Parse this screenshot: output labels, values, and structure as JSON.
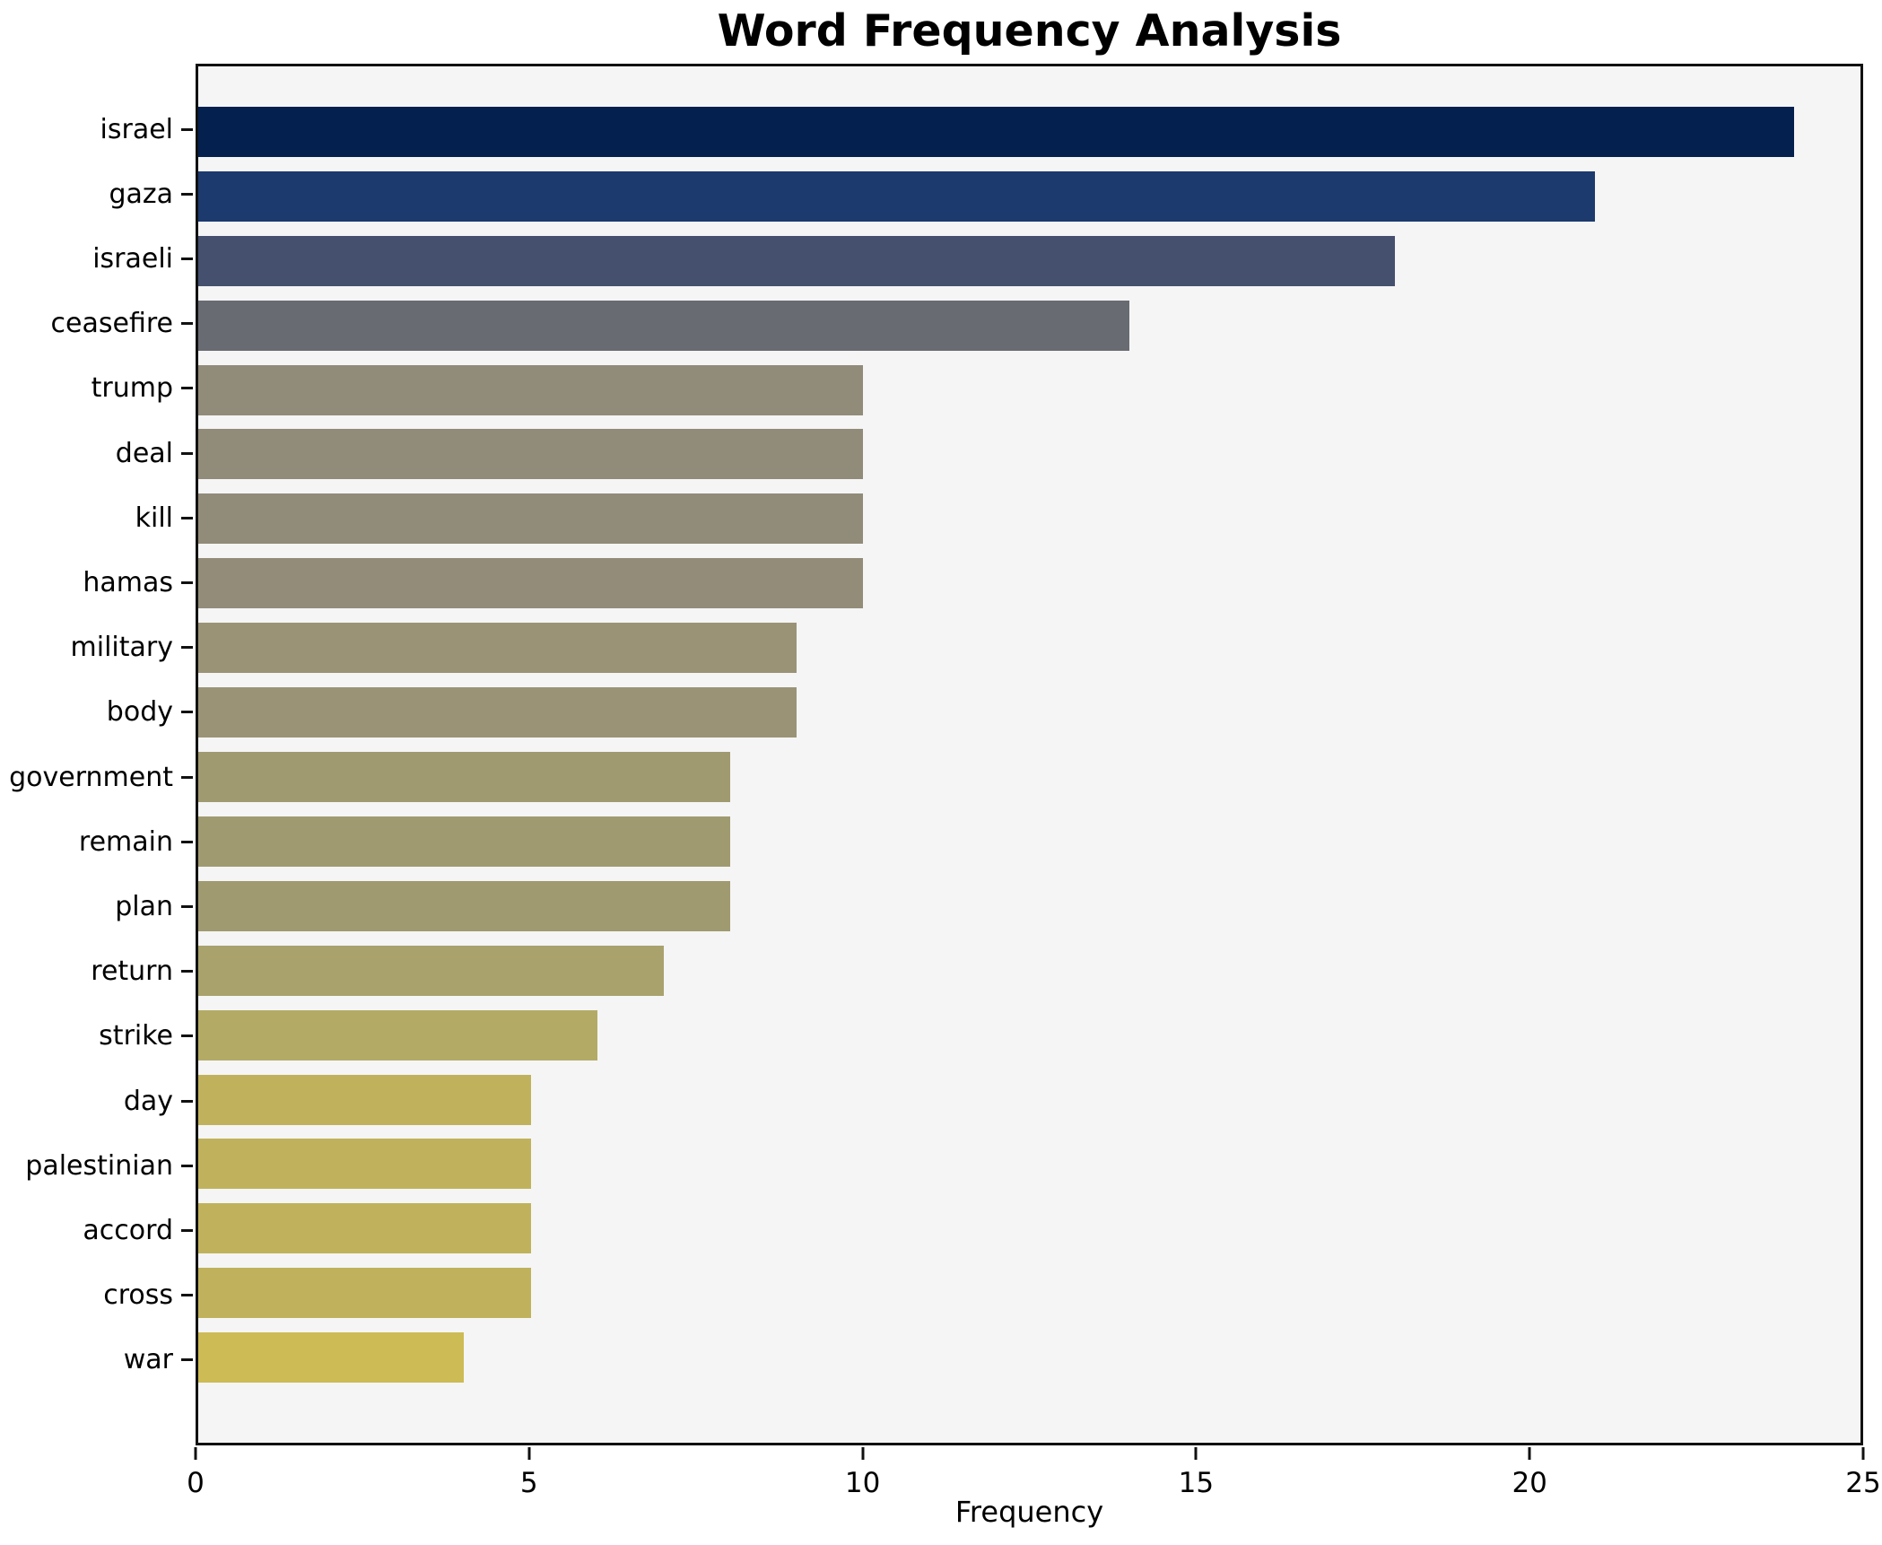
{
  "title": "Word Frequency Analysis",
  "xlabel": "Frequency",
  "chart_data": {
    "type": "bar",
    "orientation": "horizontal",
    "title": "Word Frequency Analysis",
    "xlabel": "Frequency",
    "ylabel": "",
    "xlim": [
      0,
      25
    ],
    "x_ticks": [
      0,
      5,
      10,
      15,
      20,
      25
    ],
    "grid": false,
    "legend": null,
    "plot_background": "#f5f5f6",
    "figure_background": "#ffffff",
    "spine_color": "#111111",
    "categories": [
      "israel",
      "gaza",
      "israeli",
      "ceasefire",
      "trump",
      "deal",
      "kill",
      "hamas",
      "military",
      "body",
      "government",
      "remain",
      "plan",
      "return",
      "strike",
      "day",
      "palestinian",
      "accord",
      "cross",
      "war"
    ],
    "values": [
      24,
      21,
      18,
      14,
      10,
      10,
      10,
      10,
      9,
      9,
      8,
      8,
      8,
      7,
      6,
      5,
      5,
      5,
      5,
      4
    ],
    "bar_colors": [
      "#04204e",
      "#1c3a6d",
      "#45506e",
      "#696b72",
      "#918b79",
      "#918b79",
      "#918b79",
      "#928c78",
      "#9a9376",
      "#9a9376",
      "#a09a71",
      "#a09a71",
      "#a09a71",
      "#a9a26c",
      "#b3ab65",
      "#c0b25c",
      "#c0b25c",
      "#c0b25c",
      "#c0b25c",
      "#cdbb55"
    ]
  }
}
